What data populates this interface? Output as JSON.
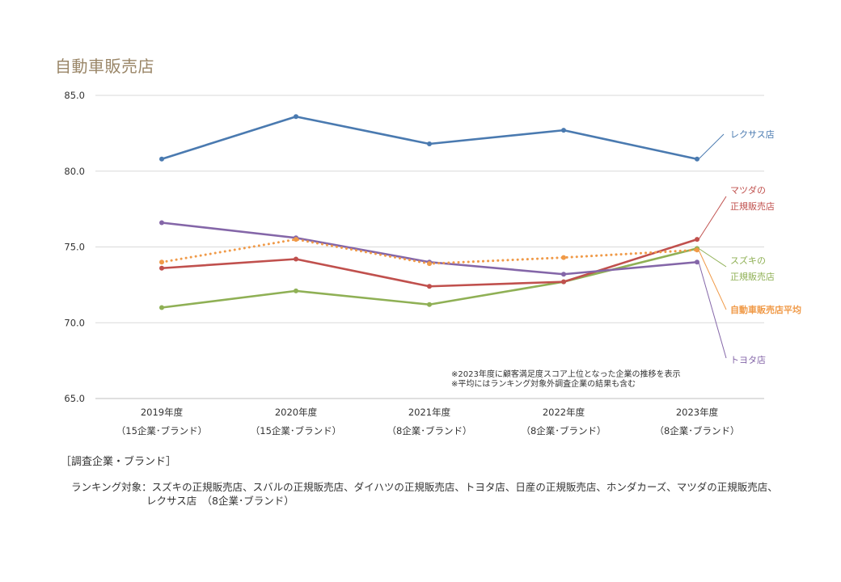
{
  "chart_data": {
    "type": "line",
    "title": "自動車販売店",
    "ylim": [
      65,
      85
    ],
    "yticks": [
      "85.0",
      "80.0",
      "75.0",
      "70.0",
      "65.0"
    ],
    "ytick_values": [
      85,
      80,
      75,
      70,
      65
    ],
    "categories": [
      {
        "year": "2019年度",
        "sub": "（15企業･ブランド）"
      },
      {
        "year": "2020年度",
        "sub": "（15企業･ブランド）"
      },
      {
        "year": "2021年度",
        "sub": "（8企業･ブランド）"
      },
      {
        "year": "2022年度",
        "sub": "（8企業･ブランド）"
      },
      {
        "year": "2023年度",
        "sub": "（8企業･ブランド）"
      }
    ],
    "series": [
      {
        "name": "レクサス店",
        "label_lines": [
          "レクサス店"
        ],
        "color": "#4a7ab0",
        "dashed": false,
        "bold": false,
        "values": [
          80.8,
          83.6,
          81.8,
          82.7,
          80.8
        ]
      },
      {
        "name": "トヨタ店",
        "label_lines": [
          "トヨタ店"
        ],
        "color": "#8466a8",
        "dashed": false,
        "bold": false,
        "values": [
          76.6,
          75.6,
          74.0,
          73.2,
          74.0
        ]
      },
      {
        "name": "マツダの正規販売店",
        "label_lines": [
          "マツダの",
          "正規販売店"
        ],
        "color": "#c0504d",
        "dashed": false,
        "bold": false,
        "values": [
          73.6,
          74.2,
          72.4,
          72.7,
          75.5
        ]
      },
      {
        "name": "スズキの正規販売店",
        "label_lines": [
          "スズキの",
          "正規販売店"
        ],
        "color": "#8fb055",
        "dashed": false,
        "bold": false,
        "values": [
          71.0,
          72.1,
          71.2,
          72.7,
          74.9
        ]
      },
      {
        "name": "自動車販売店平均",
        "label_lines": [
          "自動車販売店平均"
        ],
        "color": "#f09a48",
        "dashed": true,
        "bold": true,
        "values": [
          74.0,
          75.5,
          73.9,
          74.3,
          74.8
        ]
      }
    ],
    "notes": [
      "※2023年度に顧客満足度スコア上位となった企業の推移を表示",
      "※平均にはランキング対象外調査企業の結果も含む"
    ],
    "grid": true
  },
  "footer": {
    "heading": "［調査企業・ブランド］",
    "targets_label": "ランキング対象：",
    "targets_line1": "スズキの正規販売店、スバルの正規販売店、ダイハツの正規販売店、トヨタ店、日産の正規販売店、ホンダカーズ、マツダの正規販売店、",
    "targets_line2": "レクサス店　（8企業･ブランド）"
  }
}
